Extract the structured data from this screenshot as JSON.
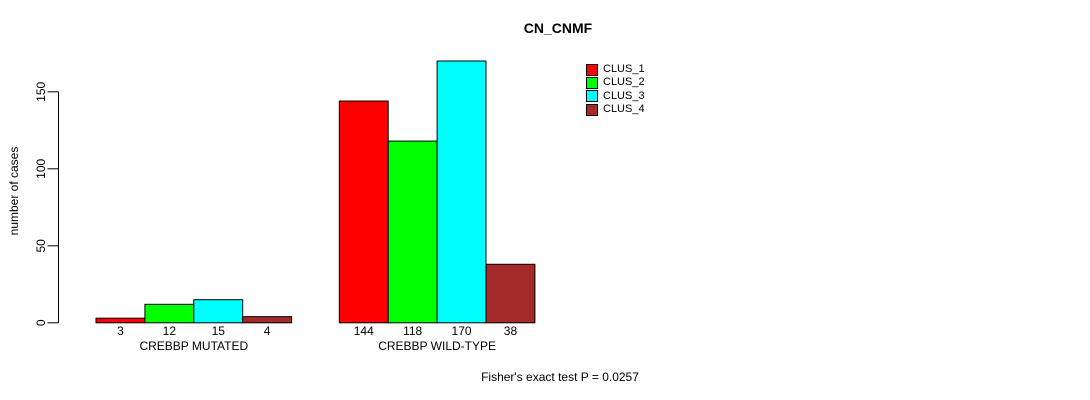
{
  "chart_data": {
    "type": "bar",
    "title": "CN_CNMF",
    "ylabel": "number of cases",
    "xlabel": "",
    "categories": [
      "CREBBP MUTATED",
      "CREBBP WILD-TYPE"
    ],
    "series": [
      {
        "name": "CLUS_1",
        "color": "#FF0000",
        "values": [
          3,
          144
        ]
      },
      {
        "name": "CLUS_2",
        "color": "#00FF00",
        "values": [
          12,
          118
        ]
      },
      {
        "name": "CLUS_3",
        "color": "#00FFFF",
        "values": [
          15,
          170
        ]
      },
      {
        "name": "CLUS_4",
        "color": "#A52A2A",
        "values": [
          4,
          38
        ]
      }
    ],
    "yticks": [
      0,
      50,
      100,
      150
    ],
    "ylim": [
      0,
      175
    ],
    "grid": false,
    "legend_position": "top-right",
    "bar_value_labels": true,
    "bar_border_color": "#000000",
    "annotation": "Fisher's exact test P = 0.0257"
  }
}
